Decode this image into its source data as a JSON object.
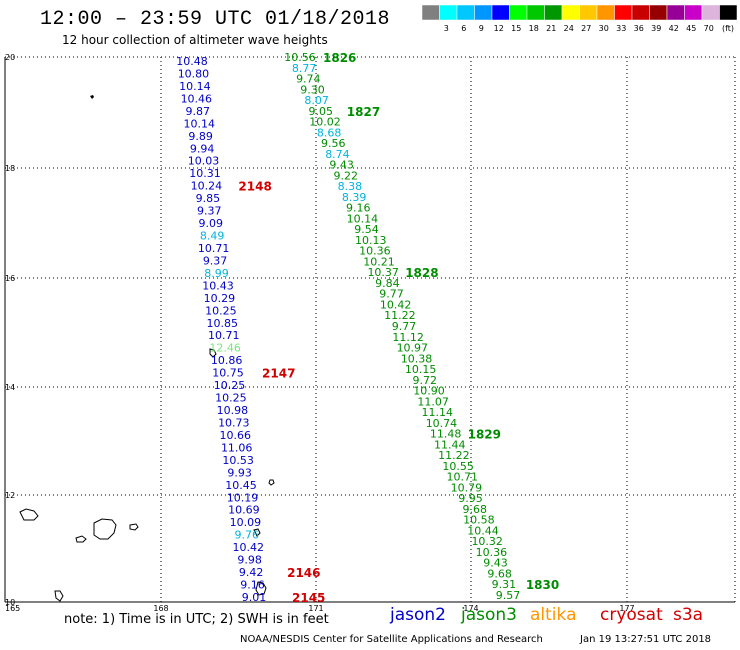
{
  "title": "12:00 – 23:59 UTC 01/18/2018",
  "subtitle": "12 hour collection of altimeter wave heights",
  "legend": {
    "unit": "(ft)",
    "colors": [
      "#808080",
      "#00ffff",
      "#00c8ff",
      "#0096ff",
      "#0000ff",
      "#00ff00",
      "#00c800",
      "#009600",
      "#ffff00",
      "#ffc800",
      "#ff9600",
      "#ff0000",
      "#c80000",
      "#960000",
      "#960096",
      "#c800c8",
      "#dcb4dc",
      "#000000"
    ],
    "labels": [
      "3",
      "6",
      "9",
      "12",
      "15",
      "18",
      "21",
      "24",
      "27",
      "30",
      "33",
      "36",
      "39",
      "42",
      "45",
      "70"
    ]
  },
  "axes": {
    "lon_ticks": [
      "165",
      "168",
      "171",
      "174",
      "177"
    ],
    "lat_ticks": [
      "20",
      "18",
      "16",
      "14",
      "12",
      "10"
    ]
  },
  "colors": {
    "jason2": "#0000c8",
    "jason3": "#008c00",
    "altika": "#ff9600",
    "cryosat": "#d20000",
    "s3a": "#d20000",
    "light_blue": "#00b4dc",
    "light_green": "#78e678"
  },
  "tracks": [
    {
      "satellite": "jason2",
      "start": [
        192,
        61
      ],
      "end": [
        254,
        597
      ],
      "values": [
        "10.48",
        "10.80",
        "10.14",
        "10.46",
        "9.87",
        "10.14",
        "9.89",
        "9.94",
        "10.03",
        "10.31",
        "10.24",
        "9.85",
        "9.37",
        "9.09",
        "8.49",
        "10.71",
        "9.37",
        "8.99",
        "10.43",
        "10.29",
        "10.25",
        "10.85",
        "10.71",
        "12.46",
        "10.86",
        "10.75",
        "10.25",
        "10.25",
        "10.98",
        "10.73",
        "10.66",
        "11.06",
        "10.53",
        "9.93",
        "10.45",
        "10.19",
        "10.69",
        "10.09",
        "9.76",
        "10.42",
        "9.98",
        "9.42",
        "9.16",
        "9.01"
      ],
      "value_colors": {
        "14": "light_blue",
        "17": "light_blue",
        "23": "light_green",
        "38": "light_blue"
      },
      "pass_labels": [
        {
          "text": "2148",
          "index": 10,
          "offset": 32
        },
        {
          "text": "2147",
          "index": 25,
          "offset": 34
        },
        {
          "text": "2146",
          "index": 41,
          "offset": 36
        },
        {
          "text": "2145",
          "index": 43,
          "offset": 38
        }
      ]
    },
    {
      "satellite": "jason3",
      "start": [
        300,
        57
      ],
      "end": [
        508,
        595
      ],
      "values": [
        "10.56",
        "8.77",
        "9.74",
        "9.30",
        "8.07",
        "9.05",
        "10.02",
        "8.68",
        "9.56",
        "8.74",
        "9.43",
        "9.22",
        "8.38",
        "8.39",
        "9.16",
        "10.14",
        "9.54",
        "10.13",
        "10.36",
        "10.21",
        "10.37",
        "9.84",
        "9.77",
        "10.42",
        "11.22",
        "9.77",
        "11.12",
        "10.97",
        "10.38",
        "10.15",
        "9.72",
        "10.90",
        "11.07",
        "11.14",
        "10.74",
        "11.48",
        "11.44",
        "11.22",
        "10.55",
        "10.71",
        "10.79",
        "9.95",
        "9.68",
        "10.58",
        "10.44",
        "10.32",
        "10.36",
        "9.43",
        "9.68",
        "9.31",
        "9.57"
      ],
      "value_colors": {
        "1": "light_blue",
        "4": "light_blue",
        "7": "light_blue",
        "9": "light_blue",
        "12": "light_blue",
        "13": "light_blue"
      },
      "pass_labels": [
        {
          "text": "1826",
          "index": 0,
          "offset": 23
        },
        {
          "text": "1827",
          "index": 5,
          "offset": 26
        },
        {
          "text": "1828",
          "index": 20,
          "offset": 22
        },
        {
          "text": "1829",
          "index": 35,
          "offset": 22
        },
        {
          "text": "1830",
          "index": 49,
          "offset": 22
        }
      ]
    }
  ],
  "note": "note:  1) Time is in UTC;  2) SWH is in feet",
  "satellites": [
    {
      "name": "jason2",
      "color_key": "jason2"
    },
    {
      "name": "jason3",
      "color_key": "jason3"
    },
    {
      "name": "altika",
      "color_key": "altika"
    },
    {
      "name": "cryosat",
      "color_key": "cryosat"
    },
    {
      "name": "s3a",
      "color_key": "s3a"
    }
  ],
  "credit": "NOAA/NESDIS Center for Satellite Applications and Research",
  "generated": "Jan 19 13:27:51 UTC 2018"
}
